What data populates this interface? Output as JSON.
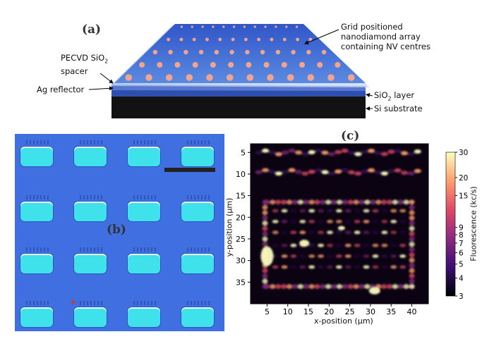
{
  "panel_a": {
    "label": "(a)",
    "annotations": {
      "pecvd_line1": "PECVD SiO",
      "pecvd_sub": "2",
      "pecvd_line2": "spacer",
      "ag": "Ag reflector",
      "grid_line1": "Grid positioned",
      "grid_line2": "nanodiamond array",
      "grid_line3": "containing NV centres",
      "sio2_main": "SiO",
      "sio2_sub": "2",
      "sio2_rest": " layer",
      "si": "Si substrate"
    },
    "colors": {
      "top_surface": "#3f6fd8",
      "dot": "#f4a38e",
      "substrate": "#111111"
    }
  },
  "panel_b": {
    "label": "(b)",
    "grid_rows": 4,
    "grid_cols": 4,
    "colors": {
      "background": "#3f6fe0",
      "pad": "#3fe2ea",
      "scale_bar": "#222222"
    }
  },
  "panel_c": {
    "label": "(c)",
    "colors": {
      "colormap": [
        "#000004",
        "#3b0f70",
        "#8c2981",
        "#de4968",
        "#fe9f6d",
        "#fcfdbf"
      ]
    }
  },
  "chart_data": {
    "type": "heatmap",
    "xlabel": "x-position (μm)",
    "ylabel": "y-position (μm)",
    "xlim": [
      1,
      44
    ],
    "ylim": [
      40,
      3
    ],
    "x_ticks": [
      5,
      10,
      15,
      20,
      25,
      30,
      35,
      40
    ],
    "y_ticks": [
      5,
      10,
      15,
      20,
      25,
      30,
      35
    ],
    "colorbar": {
      "label": "Fluorescence (kc/s)",
      "scale": "log",
      "range": [
        3,
        30
      ],
      "ticks": [
        3,
        4,
        5,
        6,
        7,
        8,
        9,
        15,
        20,
        30
      ]
    }
  }
}
